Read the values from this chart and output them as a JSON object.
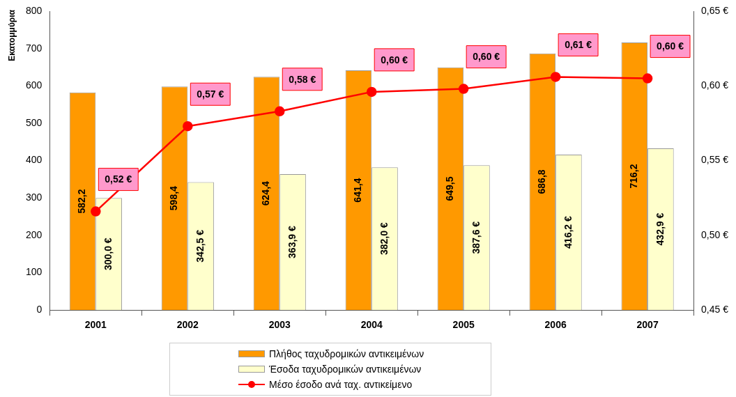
{
  "chart_data": {
    "type": "bar",
    "ylabel": "Εκατομμύρια",
    "categories": [
      "2001",
      "2002",
      "2003",
      "2004",
      "2005",
      "2006",
      "2007"
    ],
    "series": [
      {
        "name": "Πλήθος ταχυδρομικών αντικειμένων",
        "color": "#ff9900",
        "values": [
          582.2,
          598.4,
          624.4,
          641.4,
          649.5,
          686.8,
          716.2
        ],
        "value_labels": [
          "582,2",
          "598,4",
          "624,4",
          "641,4",
          "649,5",
          "686,8",
          "716,2"
        ]
      },
      {
        "name": "Έσοδα ταχυδρομικών αντικειμένων",
        "color": "#ffffcc",
        "values": [
          300.0,
          342.5,
          363.9,
          382.0,
          387.6,
          416.2,
          432.9
        ],
        "value_labels": [
          "300,0 €",
          "342,5 €",
          "363,9 €",
          "382,0 €",
          "387,6 €",
          "416,2 €",
          "432,9 €"
        ]
      },
      {
        "name": "Μέσο έσοδο ανά ταχ. αντικείμενο",
        "type": "line",
        "axis": "y2",
        "color": "#ff0000",
        "marker": "circle",
        "values": [
          0.516,
          0.573,
          0.583,
          0.596,
          0.598,
          0.606,
          0.605
        ],
        "value_labels": [
          "0,52 €",
          "0,57 €",
          "0,58 €",
          "0,60 €",
          "0,60 €",
          "0,61 €",
          "0,60 €"
        ]
      }
    ],
    "ylim": [
      0,
      800
    ],
    "yticks": [
      0,
      100,
      200,
      300,
      400,
      500,
      600,
      700,
      800
    ],
    "y2lim": [
      0.45,
      0.65
    ],
    "y2ticks": [
      {
        "value": 0.45,
        "label": "0,45 €"
      },
      {
        "value": 0.5,
        "label": "0,50 €"
      },
      {
        "value": 0.55,
        "label": "0,55 €"
      },
      {
        "value": 0.6,
        "label": "0,60 €"
      },
      {
        "value": 0.65,
        "label": "0,65 €"
      }
    ],
    "grid": false,
    "legend": "bottom"
  }
}
